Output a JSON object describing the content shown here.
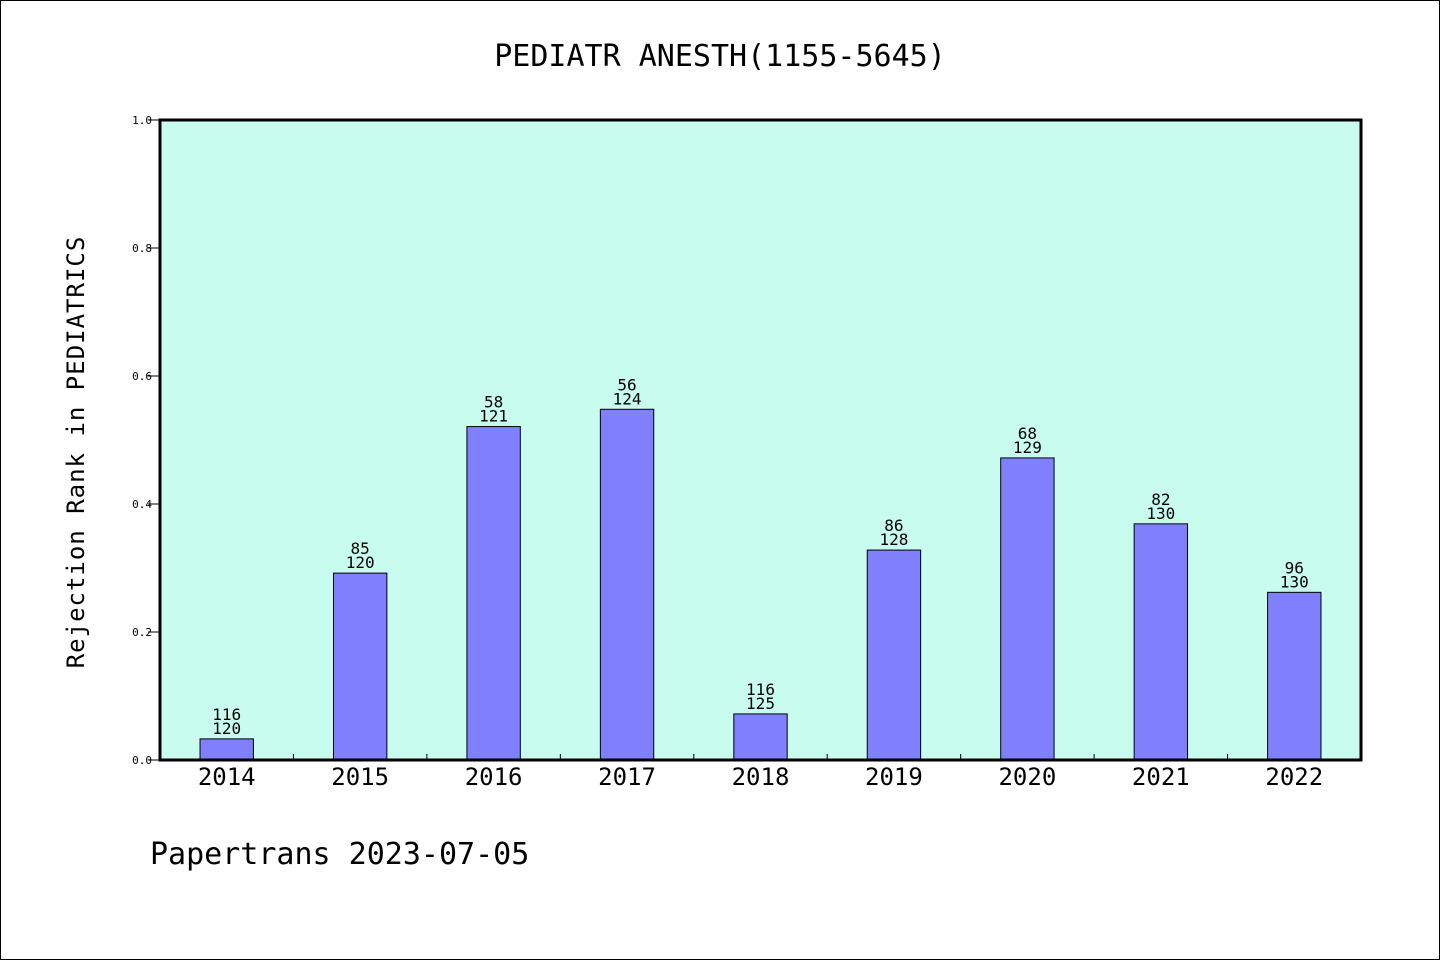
{
  "chart_data": {
    "type": "bar",
    "title": "PEDIATR ANESTH(1155-5645)",
    "xlabel": "",
    "ylabel": "Rejection Rank in PEDIATRICS",
    "ylim": [
      0,
      1.0
    ],
    "yticks": [
      "0.0",
      "0.2",
      "0.4",
      "0.6",
      "0.8",
      "1.0"
    ],
    "categories": [
      "2014",
      "2015",
      "2016",
      "2017",
      "2018",
      "2019",
      "2020",
      "2021",
      "2022"
    ],
    "values": [
      0.033,
      0.292,
      0.521,
      0.548,
      0.072,
      0.328,
      0.472,
      0.369,
      0.262
    ],
    "labels_top": [
      "116",
      "85",
      "58",
      "56",
      "116",
      "86",
      "68",
      "82",
      "96"
    ],
    "labels_bottom": [
      "120",
      "120",
      "121",
      "124",
      "125",
      "128",
      "129",
      "130",
      "130"
    ],
    "plot_background": "#c8fcee",
    "bar_color": "#8080ff",
    "grid": false,
    "legend": "none"
  },
  "footer": "Papertrans 2023-07-05"
}
